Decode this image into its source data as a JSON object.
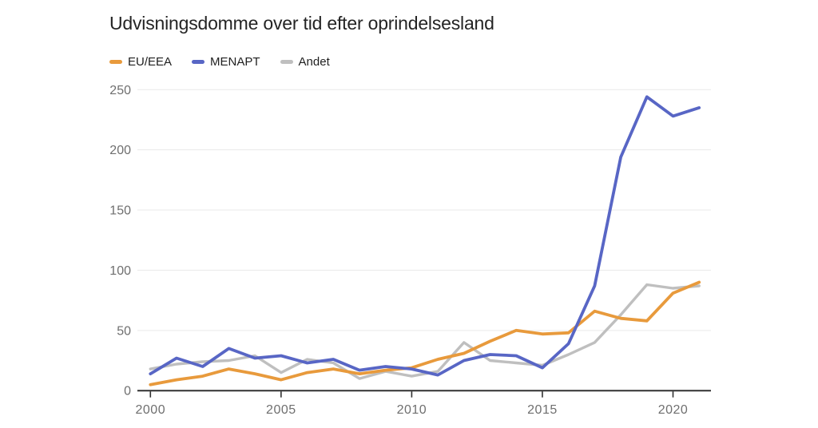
{
  "page": {
    "background": "#ffffff"
  },
  "chart": {
    "title": "Udvisningsdomme over tid efter oprindelsesland",
    "legend": [
      {
        "label": "EU/EEA",
        "color": "#E89A3C"
      },
      {
        "label": "MENAPT",
        "color": "#5866C5"
      },
      {
        "label": "Andet",
        "color": "#BFBFBF"
      }
    ]
  },
  "chart_data": {
    "type": "line",
    "title": "Udvisningsdomme over tid efter oprindelsesland",
    "xlabel": "",
    "ylabel": "",
    "x": [
      2000,
      2001,
      2002,
      2003,
      2004,
      2005,
      2006,
      2007,
      2008,
      2009,
      2010,
      2011,
      2012,
      2013,
      2014,
      2015,
      2016,
      2017,
      2018,
      2019,
      2020,
      2021
    ],
    "series": [
      {
        "name": "EU/EEA",
        "color": "#E89A3C",
        "values": [
          5,
          9,
          12,
          18,
          14,
          9,
          15,
          18,
          14,
          17,
          19,
          26,
          31,
          41,
          50,
          47,
          48,
          66,
          60,
          58,
          81,
          90
        ]
      },
      {
        "name": "MENAPT",
        "color": "#5866C5",
        "values": [
          14,
          27,
          20,
          35,
          27,
          29,
          23,
          26,
          17,
          20,
          18,
          13,
          25,
          30,
          29,
          19,
          39,
          87,
          194,
          244,
          228,
          235
        ]
      },
      {
        "name": "Andet",
        "color": "#BFBFBF",
        "values": [
          18,
          22,
          24,
          25,
          29,
          15,
          26,
          23,
          10,
          16,
          12,
          16,
          40,
          25,
          23,
          21,
          30,
          40,
          63,
          88,
          85,
          87
        ]
      }
    ],
    "draw_order": [
      "Andet",
      "EU/EEA",
      "MENAPT"
    ],
    "ylim": [
      0,
      250
    ],
    "yticks": [
      0,
      50,
      100,
      150,
      200,
      250
    ],
    "xticks": [
      2000,
      2005,
      2010,
      2015,
      2020
    ],
    "grid": "horizontal",
    "legend_position": "top-left",
    "axis_color": "#303030",
    "grid_color": "#e9e9e9",
    "tick_label_color": "#6f6f6f"
  }
}
